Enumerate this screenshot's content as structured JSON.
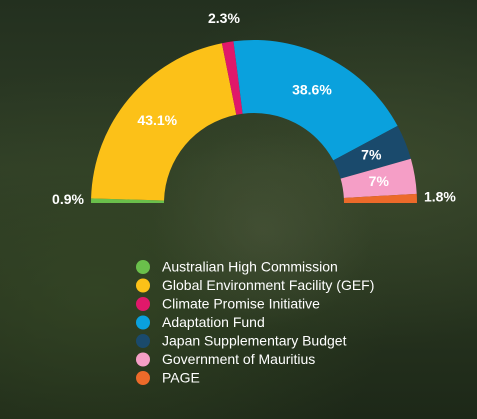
{
  "chart_data": {
    "type": "pie",
    "categories": [
      "Australian High Commission",
      "Global Environment Facility (GEF)",
      "Climate Promise Initiative",
      "Adaptation Fund",
      "Japan Supplementary Budget",
      "Government of Mauritius",
      "PAGE"
    ],
    "values": [
      0.9,
      43.1,
      2.3,
      38.6,
      7,
      7,
      1.8
    ],
    "value_labels": [
      "0.9%",
      "43.1%",
      "2.3%",
      "38.6%",
      "7%",
      "7%",
      "1.8%"
    ],
    "colors": [
      "#6abf4b",
      "#fcc118",
      "#e0186a",
      "#0aa1dd",
      "#1a4a6c",
      "#f59ec6",
      "#ec6a2a"
    ]
  }
}
